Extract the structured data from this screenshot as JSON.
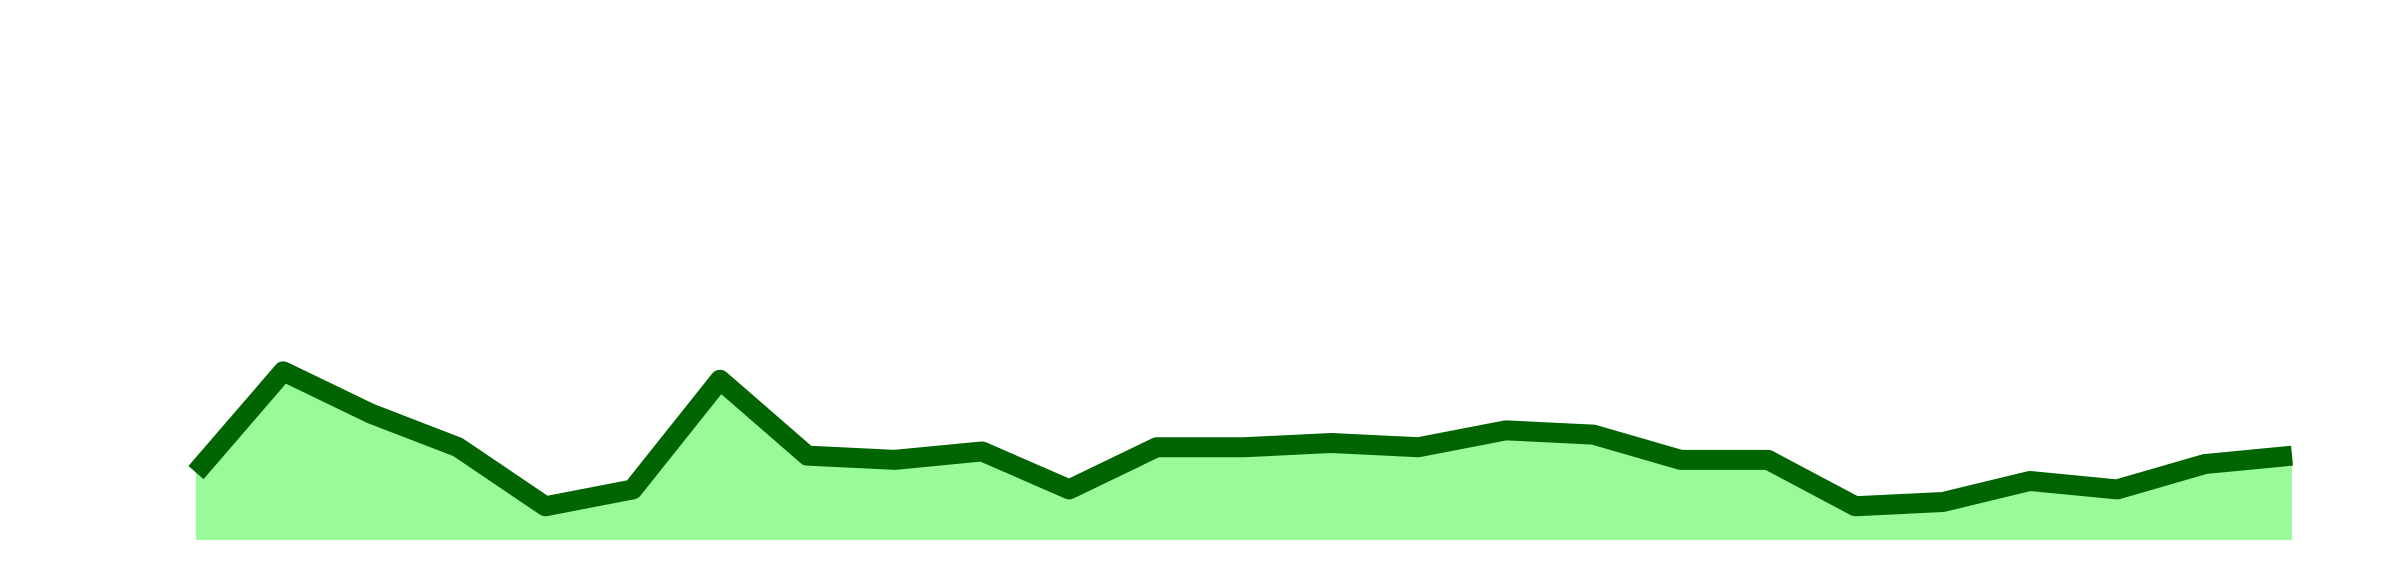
{
  "chart_data": {
    "type": "area",
    "x": [
      1,
      2,
      3,
      4,
      5,
      6,
      7,
      8,
      9,
      10,
      11,
      12,
      13,
      14,
      15,
      16,
      17,
      18,
      19,
      20,
      21,
      22,
      23,
      24,
      25
    ],
    "values": [
      88,
      100,
      95,
      91,
      84,
      86,
      99,
      90,
      89.5,
      90.5,
      86,
      91,
      91,
      91.5,
      91,
      93,
      92.5,
      89.5,
      89.5,
      84,
      84.5,
      87,
      86,
      89,
      90
    ],
    "ylim": [
      80,
      140
    ],
    "grid": false,
    "legend": "none",
    "colors": {
      "line": "#006400",
      "fill": "#98fb98"
    }
  }
}
